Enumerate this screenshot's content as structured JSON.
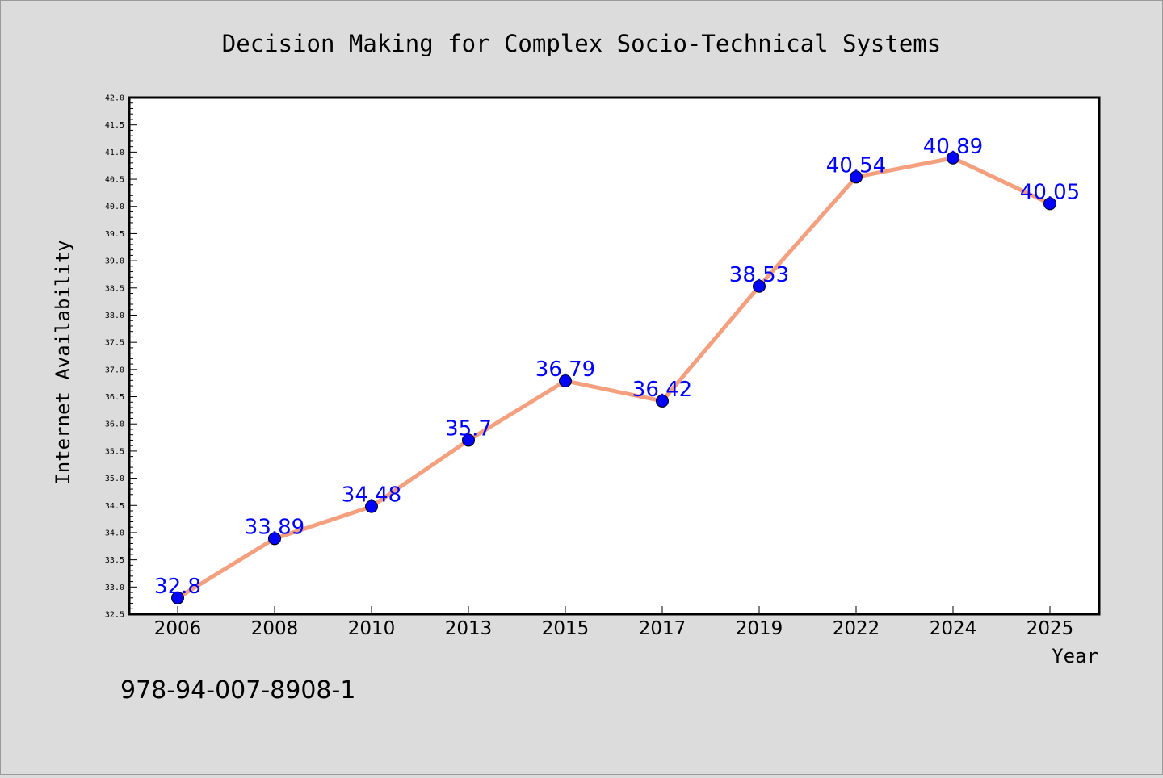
{
  "chart_data": {
    "type": "line",
    "title": "Decision Making for Complex Socio-Technical Systems",
    "xlabel": "Year",
    "ylabel": "Internet Availability",
    "categories": [
      "2006",
      "2008",
      "2010",
      "2013",
      "2015",
      "2017",
      "2019",
      "2022",
      "2024",
      "2025"
    ],
    "values": [
      32.8,
      33.89,
      34.48,
      35.7,
      36.79,
      36.42,
      38.53,
      40.54,
      40.89,
      40.05
    ],
    "data_labels": [
      "32.8",
      "33.89",
      "34.48",
      "35.7",
      "36.79",
      "36.42",
      "38.53",
      "40.54",
      "40.89",
      "40.05"
    ],
    "ylim": [
      32.5,
      42.0
    ],
    "yticks": [
      "32.5",
      "33.0",
      "33.5",
      "34.0",
      "34.5",
      "35.0",
      "35.5",
      "36.0",
      "36.5",
      "37.0",
      "37.5",
      "38.0",
      "38.5",
      "39.0",
      "39.5",
      "40.0",
      "40.5",
      "41.0",
      "41.5",
      "42.0"
    ],
    "grid": false,
    "legend": "none",
    "colors": {
      "line": "#f4a07f",
      "marker": "#0000ff",
      "label": "#0000ff",
      "plot_background": "#ffffff",
      "figure_background": "#dcdcdc"
    }
  },
  "footer": {
    "text": "978-94-007-8908-1"
  }
}
